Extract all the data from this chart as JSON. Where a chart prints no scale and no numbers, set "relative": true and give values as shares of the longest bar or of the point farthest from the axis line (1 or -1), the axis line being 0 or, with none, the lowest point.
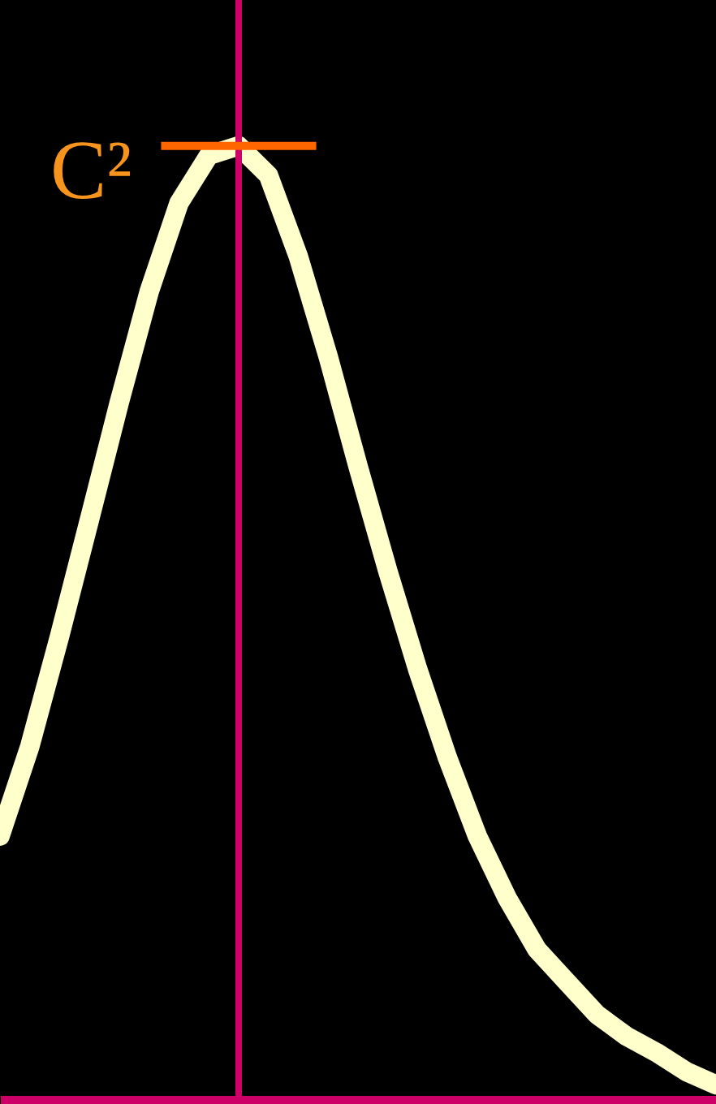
{
  "chart_data": {
    "type": "line",
    "relative": true,
    "line_style": "solid",
    "categories": [
      null,
      null,
      null,
      null,
      null,
      null,
      null,
      null,
      null,
      null,
      null,
      null,
      null,
      null,
      null,
      null,
      null,
      null,
      null,
      null,
      null,
      null,
      null,
      null,
      null
    ],
    "series": [
      {
        "color": "#ffffcc",
        "values": [
          0.276,
          0.37,
          0.486,
          0.608,
          0.731,
          0.847,
          0.94,
          0.99,
          1,
          0.969,
          0.884,
          0.779,
          0.664,
          0.554,
          0.451,
          0.358,
          0.276,
          0.211,
          0.157,
          0.123,
          0.089,
          0.066,
          0.049,
          0.029,
          0.015
        ]
      }
    ],
    "ref_lines": [
      {
        "axis": "y",
        "value": 1,
        "label": "C²",
        "color": "#ff6600"
      }
    ]
  }
}
